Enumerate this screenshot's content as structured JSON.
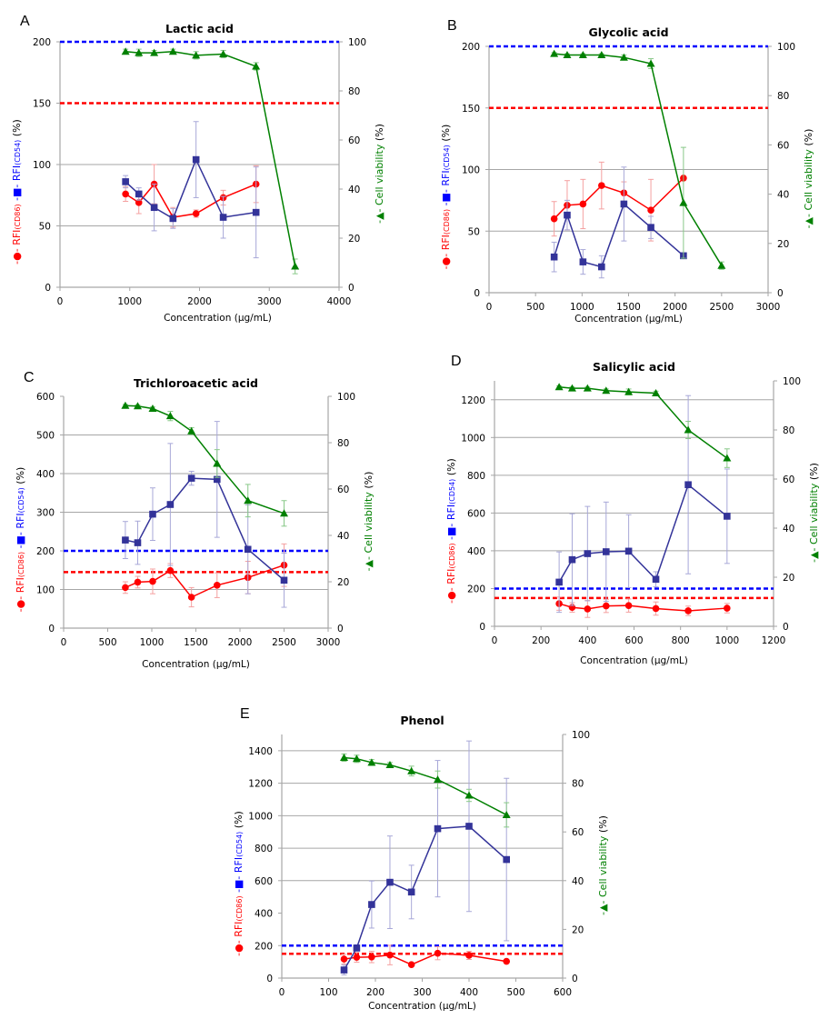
{
  "figure": {
    "y_left_label_parts": [
      {
        "text": "-●- RFI",
        "color": "#ff0000"
      },
      {
        "text": "(CD86)",
        "color": "#ff0000",
        "small": true
      },
      {
        "text": "  -■- RFI",
        "color": "#0000ff"
      },
      {
        "text": "(CD54)",
        "color": "#0000ff",
        "small": true
      },
      {
        "text": " (%)",
        "color": "#000000"
      }
    ],
    "y_right_label_parts": [
      {
        "text": "-▲- Cell viability",
        "color": "#008000"
      },
      {
        "text": " (%)",
        "color": "#000000"
      }
    ],
    "colors": {
      "cd86": "#ff0000",
      "cd54": "#333399",
      "viability": "#008000",
      "cd86_threshold": "#ff0000",
      "cd54_threshold": "#0000ff",
      "grid": "#a6a6a6",
      "axis": "#a6a6a6"
    }
  },
  "chart_data": [
    {
      "panel": "A",
      "title": "Lactic acid",
      "type": "line",
      "xlabel": "Concentration (μg/mL)",
      "xlabel_visible": ")",
      "ylabel_left": "-●- RFI(CD86) -■- RFI(CD54) (%)",
      "ylabel_right": "-▲- Cell viability (%)",
      "xlim": [
        0,
        4000
      ],
      "xticks": [
        0,
        1000,
        2000,
        3000,
        4000
      ],
      "ylim_left": [
        0,
        200
      ],
      "yticks_left": [
        0,
        50,
        100,
        150,
        200
      ],
      "ylim_right": [
        0,
        100
      ],
      "yticks_right": [
        0,
        20,
        40,
        60,
        80,
        100
      ],
      "gridlines_left": [
        50,
        100
      ],
      "thresholds": {
        "cd86": 150,
        "cd54": 200
      },
      "series": [
        {
          "name": "RFI(CD86)",
          "marker": "circle",
          "axis": "left",
          "x": [
            940,
            1130,
            1350,
            1620,
            1950,
            2340,
            2810
          ],
          "y": [
            76,
            69,
            84,
            57,
            60,
            73,
            84
          ],
          "err": [
            6,
            9,
            16,
            8,
            3,
            6,
            15
          ]
        },
        {
          "name": "RFI(CD54)",
          "marker": "square",
          "axis": "left",
          "x": [
            940,
            1130,
            1350,
            1620,
            1950,
            2340,
            2810
          ],
          "y": [
            86,
            76,
            65,
            56,
            104,
            57,
            61
          ],
          "err": [
            5,
            5,
            19,
            8,
            31,
            17,
            37
          ]
        },
        {
          "name": "Cell viability",
          "marker": "triangle",
          "axis": "right",
          "x": [
            940,
            1130,
            1350,
            1620,
            1950,
            2340,
            2810,
            3370
          ],
          "y": [
            96,
            95.5,
            95.5,
            96,
            94.5,
            95,
            90,
            8.5
          ],
          "err": [
            1,
            1.5,
            1,
            1,
            1.5,
            1.5,
            1.5,
            3
          ]
        }
      ]
    },
    {
      "panel": "B",
      "title": "Glycolic acid",
      "type": "line",
      "xlabel": "Concentration (μg/mL)",
      "ylabel_left": "-●- RFI(CD86) -■- RFI(CD54) (%)",
      "ylabel_right": "-▲- Cell viability (%)",
      "xlim": [
        0,
        3000
      ],
      "xticks": [
        0,
        500,
        1000,
        1500,
        2000,
        2500,
        3000
      ],
      "ylim_left": [
        0,
        200
      ],
      "yticks_left": [
        0,
        50,
        100,
        150,
        200
      ],
      "ylim_right": [
        0,
        100
      ],
      "yticks_right": [
        0,
        20,
        40,
        60,
        80,
        100
      ],
      "gridlines_left": [
        50,
        100
      ],
      "thresholds": {
        "cd86": 150,
        "cd54": 200
      },
      "series": [
        {
          "name": "RFI(CD86)",
          "marker": "circle",
          "axis": "left",
          "x": [
            700,
            840,
            1010,
            1210,
            1450,
            1740,
            2090
          ],
          "y": [
            60,
            71,
            72,
            87,
            81,
            67,
            93
          ],
          "err": [
            14,
            20,
            20,
            19,
            9,
            25,
            0
          ]
        },
        {
          "name": "RFI(CD54)",
          "marker": "square",
          "axis": "left",
          "x": [
            700,
            840,
            1010,
            1210,
            1450,
            1740,
            2090
          ],
          "y": [
            29,
            63,
            25,
            21,
            72,
            53,
            30
          ],
          "err": [
            12,
            12,
            10,
            9,
            30,
            9,
            0
          ]
        },
        {
          "name": "Cell viability",
          "marker": "triangle",
          "axis": "right",
          "x": [
            700,
            840,
            1010,
            1210,
            1450,
            1740,
            2090,
            2500
          ],
          "y": [
            97,
            96.5,
            96.5,
            96.5,
            95.5,
            93,
            36.5,
            11
          ],
          "err": [
            0.5,
            0.5,
            0.5,
            0.5,
            1,
            2,
            22.5,
            1.5
          ]
        }
      ]
    },
    {
      "panel": "C",
      "title": "Trichloroacetic acid",
      "type": "line",
      "xlabel": "Concentration (μg/mL)",
      "ylabel_left": "-●- RFI(CD86) -■- RFI(CD54) (%)",
      "ylabel_right": "-▲- Cell viability (%)",
      "xlim": [
        0,
        3000
      ],
      "xticks": [
        0,
        500,
        1000,
        1500,
        2000,
        2500,
        3000
      ],
      "ylim_left": [
        0,
        600
      ],
      "yticks_left": [
        0,
        100,
        200,
        300,
        400,
        500,
        600
      ],
      "ylim_right": [
        0,
        100
      ],
      "yticks_right": [
        0,
        20,
        40,
        60,
        80,
        100
      ],
      "gridlines_left": [
        100,
        300,
        400,
        500
      ],
      "thresholds": {
        "cd86": 145,
        "cd54": 200
      },
      "series": [
        {
          "name": "RFI(CD86)",
          "marker": "circle",
          "axis": "left",
          "x": [
            700,
            840,
            1010,
            1210,
            1450,
            1740,
            2090,
            2500
          ],
          "y": [
            105,
            119,
            121,
            149,
            80,
            111,
            131,
            163
          ],
          "err": [
            15,
            15,
            32,
            18,
            25,
            32,
            42,
            55
          ]
        },
        {
          "name": "RFI(CD54)",
          "marker": "square",
          "axis": "left",
          "x": [
            700,
            840,
            1010,
            1210,
            1450,
            1740,
            2090,
            2500
          ],
          "y": [
            228,
            221,
            295,
            320,
            388,
            385,
            204,
            124
          ],
          "err": [
            48,
            56,
            68,
            158,
            18,
            150,
            115,
            70
          ]
        },
        {
          "name": "Cell viability",
          "marker": "triangle",
          "axis": "right",
          "x": [
            700,
            840,
            1010,
            1210,
            1450,
            1740,
            2090,
            2500
          ],
          "y": [
            96,
            95.8,
            94.7,
            91.5,
            85,
            71,
            55,
            49.5
          ],
          "err": [
            0.5,
            0.5,
            0.7,
            2,
            1.5,
            6,
            7,
            5.5
          ]
        }
      ]
    },
    {
      "panel": "D",
      "title": "Salicylic acid",
      "type": "line",
      "xlabel": "Concentration (μg/mL)",
      "ylabel_left": "-●- RFI(CD86) -■- RFI(CD54) (%)",
      "ylabel_right": "-▲- Cell viability (%)",
      "xlim": [
        0,
        1200
      ],
      "xticks": [
        0,
        200,
        400,
        600,
        800,
        1000,
        1200
      ],
      "ylim_left": [
        0,
        1300
      ],
      "yticks_left": [
        0,
        200,
        400,
        600,
        800,
        1000,
        1200
      ],
      "ylim_right": [
        0,
        100
      ],
      "yticks_right": [
        0,
        20,
        40,
        60,
        80,
        100
      ],
      "gridlines_left": [
        400,
        600,
        800,
        1000,
        1200
      ],
      "thresholds": {
        "cd86": 150,
        "cd54": 200
      },
      "series": [
        {
          "name": "RFI(CD86)",
          "marker": "circle",
          "axis": "left",
          "x": [
            278,
            334,
            400,
            480,
            577,
            694,
            833,
            1000
          ],
          "y": [
            120,
            100,
            92,
            108,
            110,
            94,
            82,
            96
          ],
          "err": [
            35,
            25,
            45,
            35,
            35,
            35,
            25,
            25
          ]
        },
        {
          "name": "RFI(CD54)",
          "marker": "square",
          "axis": "left",
          "x": [
            278,
            334,
            400,
            480,
            577,
            694,
            833,
            1000
          ],
          "y": [
            234,
            353,
            385,
            395,
            398,
            249,
            750,
            583
          ],
          "err": [
            160,
            243,
            250,
            263,
            193,
            40,
            472,
            250
          ]
        },
        {
          "name": "Cell viability",
          "marker": "triangle",
          "axis": "right",
          "x": [
            278,
            334,
            400,
            480,
            577,
            694,
            833,
            1000
          ],
          "y": [
            97.5,
            97,
            97,
            96,
            95.5,
            95,
            80,
            68.5
          ],
          "err": [
            0.5,
            0.5,
            0.5,
            0.7,
            1.2,
            0.8,
            3.5,
            3.8
          ]
        }
      ]
    },
    {
      "panel": "E",
      "title": "Phenol",
      "type": "line",
      "xlabel": "Concentration (μg/mL)",
      "ylabel_left": "-●- RFI(CD86) -■- RFI(CD54) (%)",
      "ylabel_right": "-▲- Cell viability (%)",
      "xlim": [
        0,
        600
      ],
      "xticks": [
        0,
        100,
        200,
        300,
        400,
        500,
        600
      ],
      "ylim_left": [
        0,
        1500
      ],
      "yticks_left": [
        0,
        200,
        400,
        600,
        800,
        1000,
        1200,
        1400
      ],
      "ylim_right": [
        0,
        100
      ],
      "yticks_right": [
        0,
        20,
        40,
        60,
        80,
        100
      ],
      "gridlines_left": [
        600,
        800,
        1000,
        1200,
        1400
      ],
      "thresholds": {
        "cd86": 150,
        "cd54": 200
      },
      "series": [
        {
          "name": "RFI(CD86)",
          "marker": "circle",
          "axis": "left",
          "x": [
            133,
            160,
            192,
            231,
            277,
            333,
            400,
            480
          ],
          "y": [
            117,
            128,
            130,
            142,
            83,
            153,
            140,
            103
          ],
          "err": [
            30,
            30,
            35,
            60,
            0,
            40,
            25,
            0
          ]
        },
        {
          "name": "RFI(CD54)",
          "marker": "square",
          "axis": "left",
          "x": [
            133,
            160,
            192,
            231,
            277,
            333,
            400,
            480
          ],
          "y": [
            50,
            185,
            453,
            590,
            530,
            920,
            935,
            730
          ],
          "err": [
            30,
            0,
            145,
            285,
            165,
            420,
            525,
            500
          ]
        },
        {
          "name": "Cell viability",
          "marker": "triangle",
          "axis": "right",
          "x": [
            133,
            160,
            192,
            231,
            277,
            333,
            400,
            480
          ],
          "y": [
            90.5,
            90,
            88.5,
            87.5,
            85,
            81.5,
            75,
            67
          ],
          "err": [
            1.5,
            1.5,
            1.2,
            1,
            2,
            3.5,
            2.5,
            5
          ]
        }
      ]
    }
  ]
}
